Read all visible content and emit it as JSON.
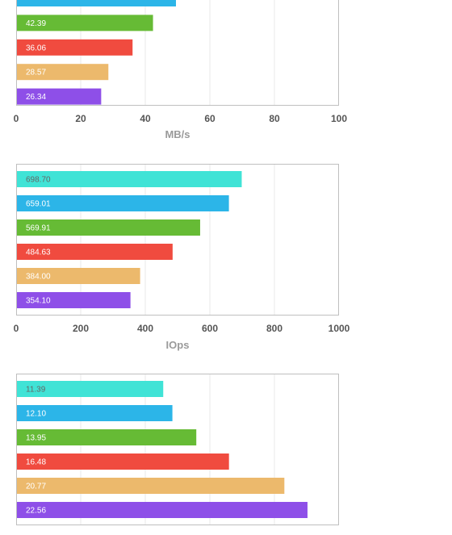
{
  "chart_data": [
    {
      "type": "bar",
      "orientation": "horizontal",
      "xlabel": "MB/s",
      "xlim": [
        0,
        100
      ],
      "ticks": [
        "0",
        "20",
        "40",
        "60",
        "80",
        "100"
      ],
      "grid": true,
      "values": [
        49.5,
        42.39,
        36.06,
        28.57,
        26.34
      ],
      "labels": [
        "",
        "42.39",
        "36.06",
        "28.57",
        "26.34"
      ],
      "colors": [
        "#2cb5e8",
        "#66bb35",
        "#f04b3f",
        "#ecb96c",
        "#8e4fe8"
      ],
      "label_colors": [
        "#ffffff",
        "#ffffff",
        "#ffffff",
        "#ffffff",
        "#ffffff"
      ]
    },
    {
      "type": "bar",
      "orientation": "horizontal",
      "xlabel": "IOps",
      "xlim": [
        0,
        1000
      ],
      "ticks": [
        "0",
        "200",
        "400",
        "600",
        "800",
        "1000"
      ],
      "grid": true,
      "values": [
        698.7,
        659.01,
        569.91,
        484.63,
        384.0,
        354.1
      ],
      "labels": [
        "698.70",
        "659.01",
        "569.91",
        "484.63",
        "384.00",
        "354.10"
      ],
      "colors": [
        "#40e3d6",
        "#2cb5e8",
        "#66bb35",
        "#f04b3f",
        "#ecb96c",
        "#8e4fe8"
      ],
      "label_colors": [
        "#666666",
        "#ffffff",
        "#ffffff",
        "#ffffff",
        "#ffffff",
        "#ffffff"
      ]
    },
    {
      "type": "bar",
      "orientation": "horizontal",
      "xlabel": "",
      "xlim": [
        0,
        25
      ],
      "ticks": [],
      "grid": true,
      "values": [
        11.39,
        12.1,
        13.95,
        16.48,
        20.77,
        22.56
      ],
      "labels": [
        "11.39",
        "12.10",
        "13.95",
        "16.48",
        "20.77",
        "22.56"
      ],
      "colors": [
        "#40e3d6",
        "#2cb5e8",
        "#66bb35",
        "#f04b3f",
        "#ecb96c",
        "#8e4fe8"
      ],
      "label_colors": [
        "#666666",
        "#ffffff",
        "#ffffff",
        "#ffffff",
        "#ffffff",
        "#ffffff"
      ]
    }
  ]
}
